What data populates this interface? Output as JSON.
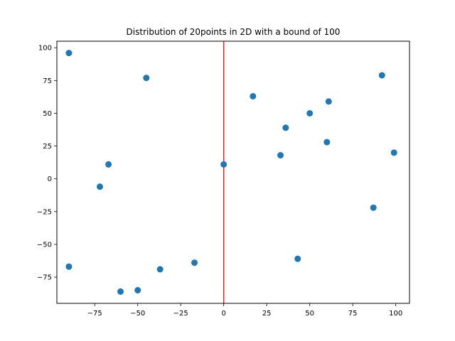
{
  "chart_data": {
    "type": "scatter",
    "title": "Distribution of 20points in 2D with a bound of 100",
    "xlabel": "",
    "ylabel": "",
    "xlim": [
      -97,
      108
    ],
    "ylim": [
      -95,
      105
    ],
    "xticks": [
      -75,
      -50,
      -25,
      0,
      25,
      50,
      75,
      100
    ],
    "yticks": [
      -75,
      -50,
      -25,
      0,
      25,
      50,
      75,
      100
    ],
    "xtick_labels": [
      "−75",
      "−50",
      "−25",
      "0",
      "25",
      "50",
      "75",
      "100"
    ],
    "ytick_labels": [
      "−75",
      "−50",
      "−25",
      "0",
      "25",
      "50",
      "75",
      "100"
    ],
    "grid": false,
    "point_color": "#1f77b4",
    "vertical_line": {
      "x": 0,
      "color": "#d62728"
    },
    "points": [
      {
        "x": -90,
        "y": 96
      },
      {
        "x": -45,
        "y": 77
      },
      {
        "x": -67,
        "y": 11
      },
      {
        "x": -72,
        "y": -6
      },
      {
        "x": -90,
        "y": -67
      },
      {
        "x": -60,
        "y": -86
      },
      {
        "x": -50,
        "y": -85
      },
      {
        "x": -37,
        "y": -69
      },
      {
        "x": -17,
        "y": -64
      },
      {
        "x": 0,
        "y": 11
      },
      {
        "x": 17,
        "y": 63
      },
      {
        "x": 33,
        "y": 18
      },
      {
        "x": 36,
        "y": 39
      },
      {
        "x": 43,
        "y": -61
      },
      {
        "x": 50,
        "y": 50
      },
      {
        "x": 60,
        "y": 28
      },
      {
        "x": 61,
        "y": 59
      },
      {
        "x": 87,
        "y": -22
      },
      {
        "x": 92,
        "y": 79
      },
      {
        "x": 99,
        "y": 20
      }
    ]
  }
}
